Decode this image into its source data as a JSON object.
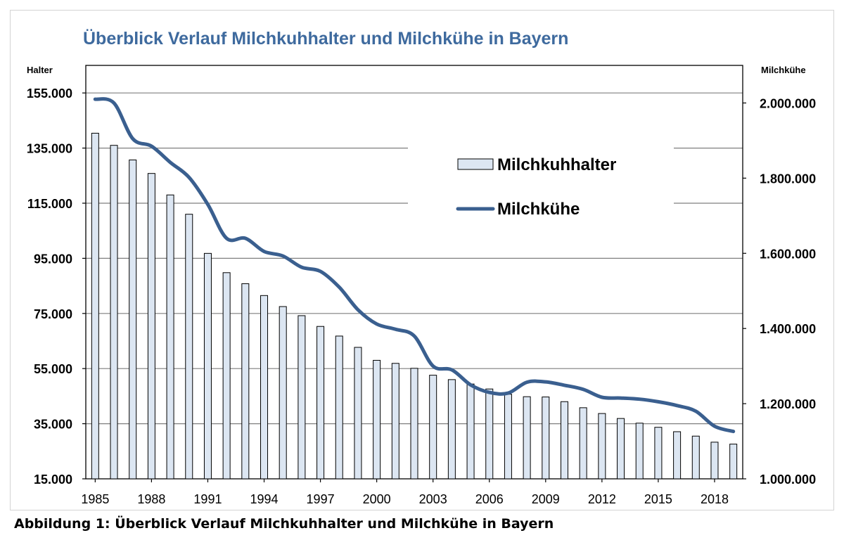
{
  "caption": "Abbildung 1: Überblick Verlauf Milchkuhhalter und Milchkühe in Bayern",
  "colors": {
    "title": "#3e6a9e",
    "line": "#3a5f8f",
    "bar_fill": "#dce6f2",
    "bar_stroke": "#000000",
    "grid": "#7f7f7f"
  },
  "chart_data": {
    "type": "bar",
    "title": "Überblick Verlauf Milchkuhhalter und Milchkühe in Bayern",
    "y_left_label": "Halter",
    "y_right_label": "Milchkühe",
    "ylim_left": [
      15000,
      165000
    ],
    "ylim_right": [
      1000000,
      2100000
    ],
    "y_left_ticks": [
      "15.000",
      "35.000",
      "55.000",
      "75.000",
      "95.000",
      "115.000",
      "135.000",
      "155.000"
    ],
    "y_left_tick_values": [
      15000,
      35000,
      55000,
      75000,
      95000,
      115000,
      135000,
      155000
    ],
    "y_right_ticks": [
      "1.000.000",
      "1.200.000",
      "1.400.000",
      "1.600.000",
      "1.800.000",
      "2.000.000"
    ],
    "y_right_tick_values": [
      1000000,
      1200000,
      1400000,
      1600000,
      1800000,
      2000000
    ],
    "x_tick_labels": [
      "1985",
      "1988",
      "1991",
      "1994",
      "1997",
      "2000",
      "2003",
      "2006",
      "2009",
      "2012",
      "2015",
      "2018"
    ],
    "grid": true,
    "legend_position": "upper-right",
    "categories": [
      "1985",
      "1986",
      "1987",
      "1988",
      "1989",
      "1990",
      "1991",
      "1992",
      "1993",
      "1994",
      "1995",
      "1996",
      "1997",
      "1998",
      "1999",
      "2000",
      "2001",
      "2002",
      "2003",
      "2004",
      "2005",
      "2006",
      "2007",
      "2008",
      "2009",
      "2010",
      "2011",
      "2012",
      "2013",
      "2014",
      "2015",
      "2016",
      "2017",
      "2018",
      "2019"
    ],
    "series": [
      {
        "name": "Milchkuhhalter",
        "type": "bar",
        "axis": "left",
        "values": [
          140400,
          136000,
          130700,
          125800,
          118000,
          111000,
          96800,
          89800,
          85800,
          81500,
          77500,
          74200,
          70300,
          66800,
          62700,
          58000,
          56900,
          55100,
          52600,
          51000,
          49400,
          47600,
          45700,
          44800,
          44700,
          43000,
          40800,
          38700,
          36900,
          35200,
          33700,
          32100,
          30500,
          28300,
          27600
        ]
      },
      {
        "name": "Milchkühe",
        "type": "line",
        "axis": "right",
        "values": [
          2010000,
          2000000,
          1905000,
          1885000,
          1842000,
          1802000,
          1730000,
          1640000,
          1640000,
          1605000,
          1593000,
          1563000,
          1552000,
          1510000,
          1450000,
          1412000,
          1398000,
          1380000,
          1300000,
          1290000,
          1250000,
          1230000,
          1228000,
          1257000,
          1258000,
          1249000,
          1238000,
          1217000,
          1215000,
          1212000,
          1205000,
          1195000,
          1180000,
          1140000,
          1126000
        ]
      }
    ]
  }
}
